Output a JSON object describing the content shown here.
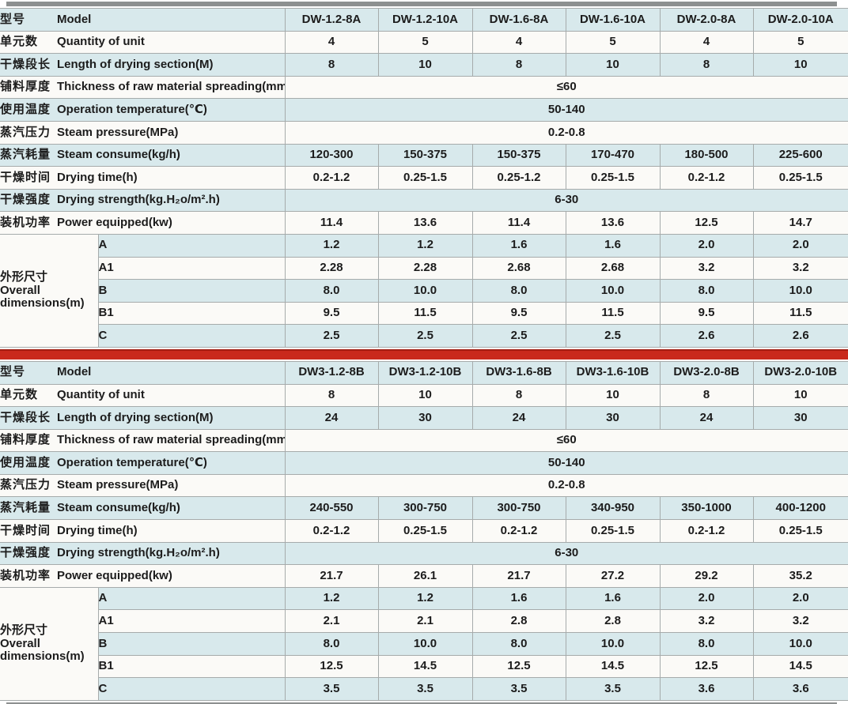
{
  "colors": {
    "row_blue": "#d8e9ec",
    "row_white": "#fbfaf7",
    "border": "#a6abab",
    "separator_red": "#c9291c",
    "separator_red_dark": "#a31d11",
    "gray_bar": "#8d9090",
    "text": "#1c1c1c"
  },
  "row_defs": [
    {
      "zh": "型号",
      "en": "Model",
      "type": "values"
    },
    {
      "zh": "单元数",
      "en": "Quantity of unit",
      "type": "values"
    },
    {
      "zh": "干燥段长",
      "en": "Length of drying section(M)",
      "type": "values"
    },
    {
      "zh": "铺料厚度",
      "en": "Thickness of raw material spreading(mm)",
      "type": "span"
    },
    {
      "zh": "使用温度",
      "en": "Operation temperature(℃)",
      "type": "span"
    },
    {
      "zh": "蒸汽压力",
      "en": "Steam pressure(MPa)",
      "type": "span"
    },
    {
      "zh": "蒸汽耗量",
      "en": "Steam consume(kg/h)",
      "type": "values"
    },
    {
      "zh": "干燥时间",
      "en": "Drying time(h)",
      "type": "values"
    },
    {
      "zh": "干燥强度",
      "en": "Drying strength(kg.H₂o/m².h)",
      "type": "span"
    },
    {
      "zh": "装机功率",
      "en": "Power equipped(kw)",
      "type": "values"
    }
  ],
  "dims_label": {
    "zh": "外形尺寸",
    "en_line1": "Overall",
    "en_line2": "dimensions(m)"
  },
  "tables": [
    {
      "rows": [
        {
          "values": [
            "DW-1.2-8A",
            "DW-1.2-10A",
            "DW-1.6-8A",
            "DW-1.6-10A",
            "DW-2.0-8A",
            "DW-2.0-10A"
          ]
        },
        {
          "values": [
            "4",
            "5",
            "4",
            "5",
            "4",
            "5"
          ]
        },
        {
          "values": [
            "8",
            "10",
            "8",
            "10",
            "8",
            "10"
          ]
        },
        {
          "value": "≤60"
        },
        {
          "value": "50-140"
        },
        {
          "value": "0.2-0.8"
        },
        {
          "values": [
            "120-300",
            "150-375",
            "150-375",
            "170-470",
            "180-500",
            "225-600"
          ]
        },
        {
          "values": [
            "0.2-1.2",
            "0.25-1.5",
            "0.25-1.2",
            "0.25-1.5",
            "0.2-1.2",
            "0.25-1.5"
          ]
        },
        {
          "value": "6-30"
        },
        {
          "values": [
            "11.4",
            "13.6",
            "11.4",
            "13.6",
            "12.5",
            "14.7"
          ]
        }
      ],
      "dims": [
        {
          "key": "A",
          "values": [
            "1.2",
            "1.2",
            "1.6",
            "1.6",
            "2.0",
            "2.0"
          ]
        },
        {
          "key": "A1",
          "values": [
            "2.28",
            "2.28",
            "2.68",
            "2.68",
            "3.2",
            "3.2"
          ]
        },
        {
          "key": "B",
          "values": [
            "8.0",
            "10.0",
            "8.0",
            "10.0",
            "8.0",
            "10.0"
          ]
        },
        {
          "key": "B1",
          "values": [
            "9.5",
            "11.5",
            "9.5",
            "11.5",
            "9.5",
            "11.5"
          ]
        },
        {
          "key": "C",
          "values": [
            "2.5",
            "2.5",
            "2.5",
            "2.5",
            "2.6",
            "2.6"
          ]
        }
      ]
    },
    {
      "rows": [
        {
          "values": [
            "DW3-1.2-8B",
            "DW3-1.2-10B",
            "DW3-1.6-8B",
            "DW3-1.6-10B",
            "DW3-2.0-8B",
            "DW3-2.0-10B"
          ]
        },
        {
          "values": [
            "8",
            "10",
            "8",
            "10",
            "8",
            "10"
          ]
        },
        {
          "values": [
            "24",
            "30",
            "24",
            "30",
            "24",
            "30"
          ]
        },
        {
          "value": "≤60"
        },
        {
          "value": "50-140"
        },
        {
          "value": "0.2-0.8"
        },
        {
          "values": [
            "240-550",
            "300-750",
            "300-750",
            "340-950",
            "350-1000",
            "400-1200"
          ]
        },
        {
          "values": [
            "0.2-1.2",
            "0.25-1.5",
            "0.2-1.2",
            "0.25-1.5",
            "0.2-1.2",
            "0.25-1.5"
          ]
        },
        {
          "value": "6-30"
        },
        {
          "values": [
            "21.7",
            "26.1",
            "21.7",
            "27.2",
            "29.2",
            "35.2"
          ]
        }
      ],
      "dims": [
        {
          "key": "A",
          "values": [
            "1.2",
            "1.2",
            "1.6",
            "1.6",
            "2.0",
            "2.0"
          ]
        },
        {
          "key": "A1",
          "values": [
            "2.1",
            "2.1",
            "2.8",
            "2.8",
            "3.2",
            "3.2"
          ]
        },
        {
          "key": "B",
          "values": [
            "8.0",
            "10.0",
            "8.0",
            "10.0",
            "8.0",
            "10.0"
          ]
        },
        {
          "key": "B1",
          "values": [
            "12.5",
            "14.5",
            "12.5",
            "14.5",
            "12.5",
            "14.5"
          ]
        },
        {
          "key": "C",
          "values": [
            "3.5",
            "3.5",
            "3.5",
            "3.5",
            "3.6",
            "3.6"
          ]
        }
      ]
    }
  ]
}
